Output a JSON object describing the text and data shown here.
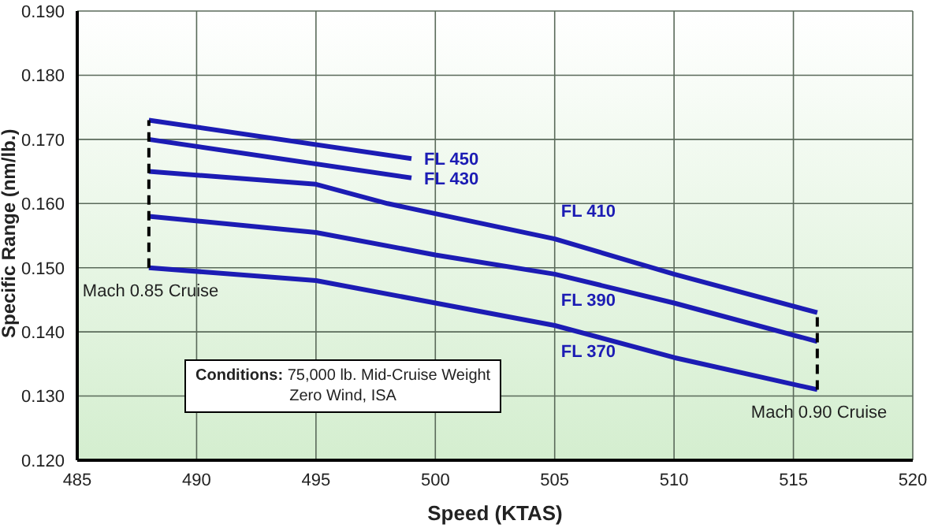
{
  "chart_data": {
    "type": "line",
    "xlabel": "Speed (KTAS)",
    "ylabel": "Specific Range (nm/lb.)",
    "xlim": [
      485,
      520
    ],
    "xticks": [
      485,
      490,
      495,
      500,
      505,
      510,
      515,
      520
    ],
    "ylim": [
      0.12,
      0.19
    ],
    "yticks": [
      {
        "value": 0.12,
        "label": "0.120"
      },
      {
        "value": 0.13,
        "label": "0.130"
      },
      {
        "value": 0.14,
        "label": "0.140"
      },
      {
        "value": 0.15,
        "label": "0.150"
      },
      {
        "value": 0.16,
        "label": "0.160"
      },
      {
        "value": 0.17,
        "label": "0.170"
      },
      {
        "value": 0.18,
        "label": "0.180"
      },
      {
        "value": 0.19,
        "label": "0.190"
      }
    ],
    "grid": true,
    "marker": "none",
    "series": [
      {
        "name": "FL 450",
        "color": "#1c1cb4",
        "x": [
          488,
          499
        ],
        "values": [
          0.173,
          0.167
        ]
      },
      {
        "name": "FL 430",
        "color": "#1c1cb4",
        "x": [
          488,
          499
        ],
        "values": [
          0.17,
          0.164
        ]
      },
      {
        "name": "FL 410",
        "color": "#1c1cb4",
        "x": [
          488,
          495,
          498,
          505,
          510,
          516
        ],
        "values": [
          0.165,
          0.163,
          0.16,
          0.1545,
          0.149,
          0.143
        ]
      },
      {
        "name": "FL 390",
        "color": "#1c1cb4",
        "x": [
          488,
          495,
          500,
          505,
          510,
          516
        ],
        "values": [
          0.158,
          0.1555,
          0.152,
          0.149,
          0.1445,
          0.1385
        ]
      },
      {
        "name": "FL 370",
        "color": "#1c1cb4",
        "x": [
          488,
          495,
          500,
          505,
          510,
          516
        ],
        "values": [
          0.15,
          0.148,
          0.1445,
          0.141,
          0.136,
          0.131
        ]
      },
      {
        "color": "#000000",
        "line_style": "dashed",
        "x": [
          488,
          488
        ],
        "values": [
          0.15,
          0.173
        ]
      },
      {
        "color": "#000000",
        "line_style": "dashed",
        "x": [
          516,
          516
        ],
        "values": [
          0.131,
          0.143
        ]
      }
    ],
    "annotations": [
      {
        "text": "Mach 0.85 Cruise",
        "x": 488,
        "y": 0.15
      },
      {
        "text": "Mach 0.90 Cruise",
        "x": 516,
        "y": 0.131
      },
      "Conditions: 75,000 lb. Mid-Cruise Weight\nZero Wind, ISA"
    ]
  }
}
